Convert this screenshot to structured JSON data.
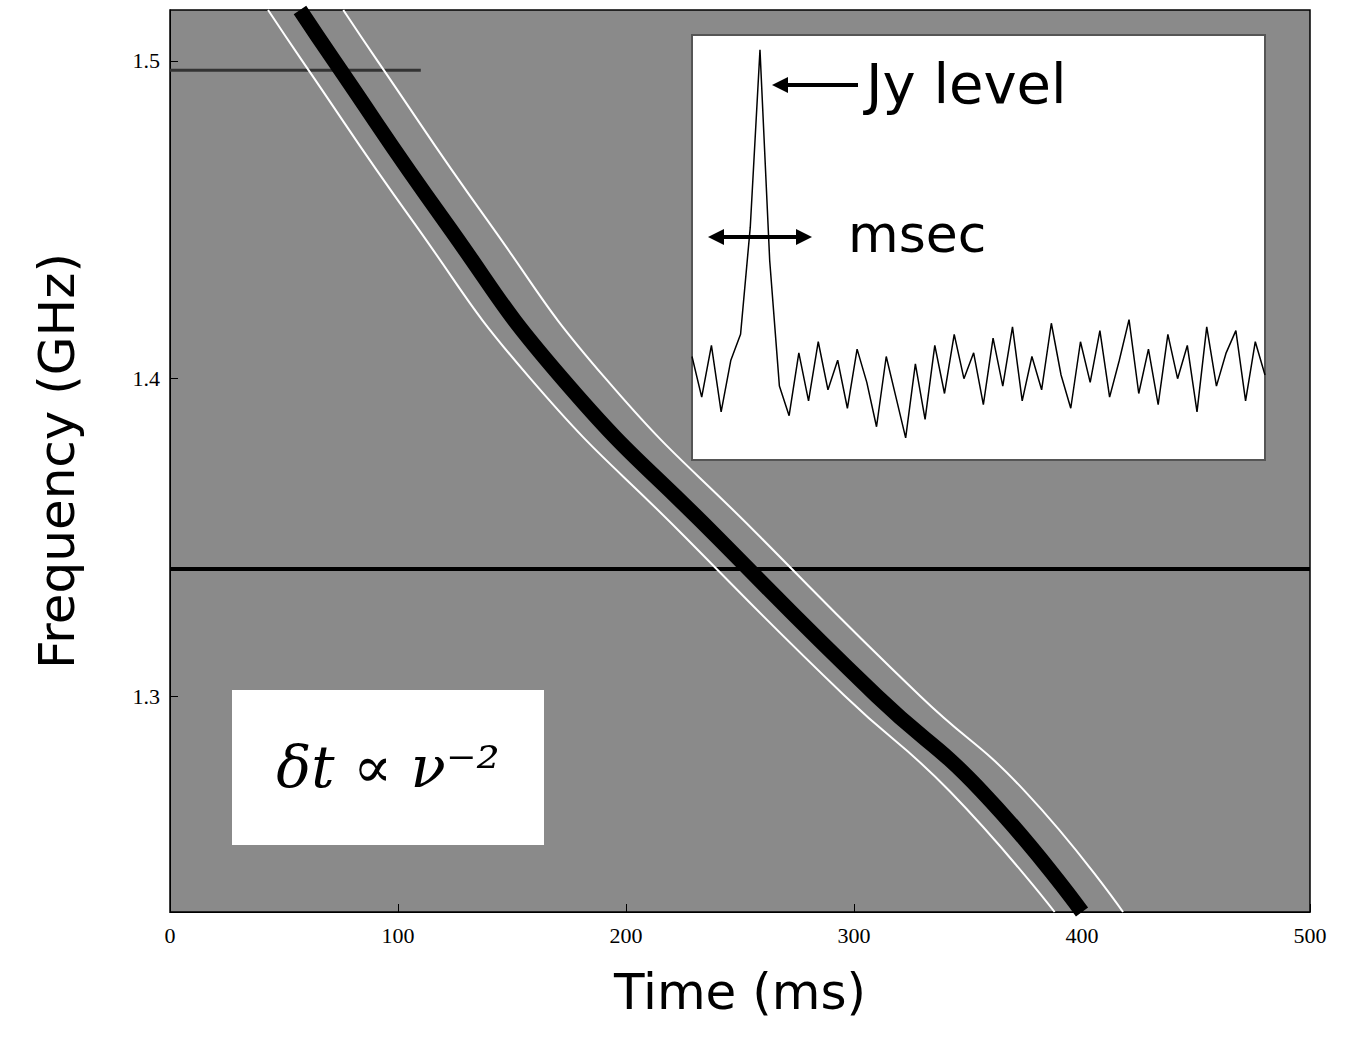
{
  "chart_data": [
    {
      "type": "line",
      "x_label": "Time (ms)",
      "y_label": "Frequency (GHz)",
      "xlim": [
        0,
        500
      ],
      "xticks": [
        0,
        100,
        200,
        300,
        400,
        500
      ],
      "ylim": [
        1.232,
        1.516
      ],
      "yticks": [
        1.3,
        1.4,
        1.5
      ],
      "annotation": "δt ∝ ν⁻²",
      "series": [
        {
          "color": "#000000",
          "x": [
            0,
            500
          ],
          "values": [
            1.34,
            1.34
          ]
        },
        {
          "color": "#333333",
          "x": [
            0,
            110
          ],
          "values": [
            1.497,
            1.497
          ]
        },
        {
          "color": "#ffffff",
          "x": [
            43,
            58,
            106,
            158,
            226,
            296,
            342,
            388
          ],
          "values": [
            1.516,
            1.5,
            1.45,
            1.4,
            1.35,
            1.3,
            1.27,
            1.232
          ]
        },
        {
          "color": "#ffffff",
          "x": [
            76,
            91,
            139,
            191,
            259,
            329,
            375,
            418
          ],
          "values": [
            1.516,
            1.5,
            1.45,
            1.4,
            1.35,
            1.3,
            1.27,
            1.232
          ]
        },
        {
          "color": "#000000",
          "x": [
            57,
            72,
            120,
            172,
            240,
            310,
            356,
            400
          ],
          "values": [
            1.516,
            1.5,
            1.45,
            1.4,
            1.35,
            1.3,
            1.27,
            1.232
          ]
        }
      ]
    },
    {
      "type": "line",
      "tick_labels": false,
      "ylim": [
        -2.5,
        9
      ],
      "color": "#000000",
      "annotations": [
        "Jy level",
        "msec"
      ],
      "values": [
        0.3,
        -0.8,
        0.6,
        -1.2,
        0.2,
        0.9,
        3.8,
        8.6,
        2.9,
        -0.5,
        -1.3,
        0.4,
        -0.9,
        0.7,
        -0.6,
        0.2,
        -1.1,
        0.5,
        -0.4,
        -1.6,
        0.3,
        -0.8,
        -1.9,
        0.1,
        -1.4,
        0.6,
        -0.7,
        0.9,
        -0.3,
        0.4,
        -1.0,
        0.8,
        -0.5,
        1.1,
        -0.9,
        0.3,
        -0.6,
        1.2,
        -0.2,
        -1.1,
        0.7,
        -0.4,
        1.0,
        -0.8,
        0.2,
        1.3,
        -0.7,
        0.5,
        -1.0,
        0.9,
        -0.3,
        0.6,
        -1.2,
        1.1,
        -0.5,
        0.4,
        1.0,
        -0.9,
        0.7,
        -0.2
      ]
    }
  ]
}
